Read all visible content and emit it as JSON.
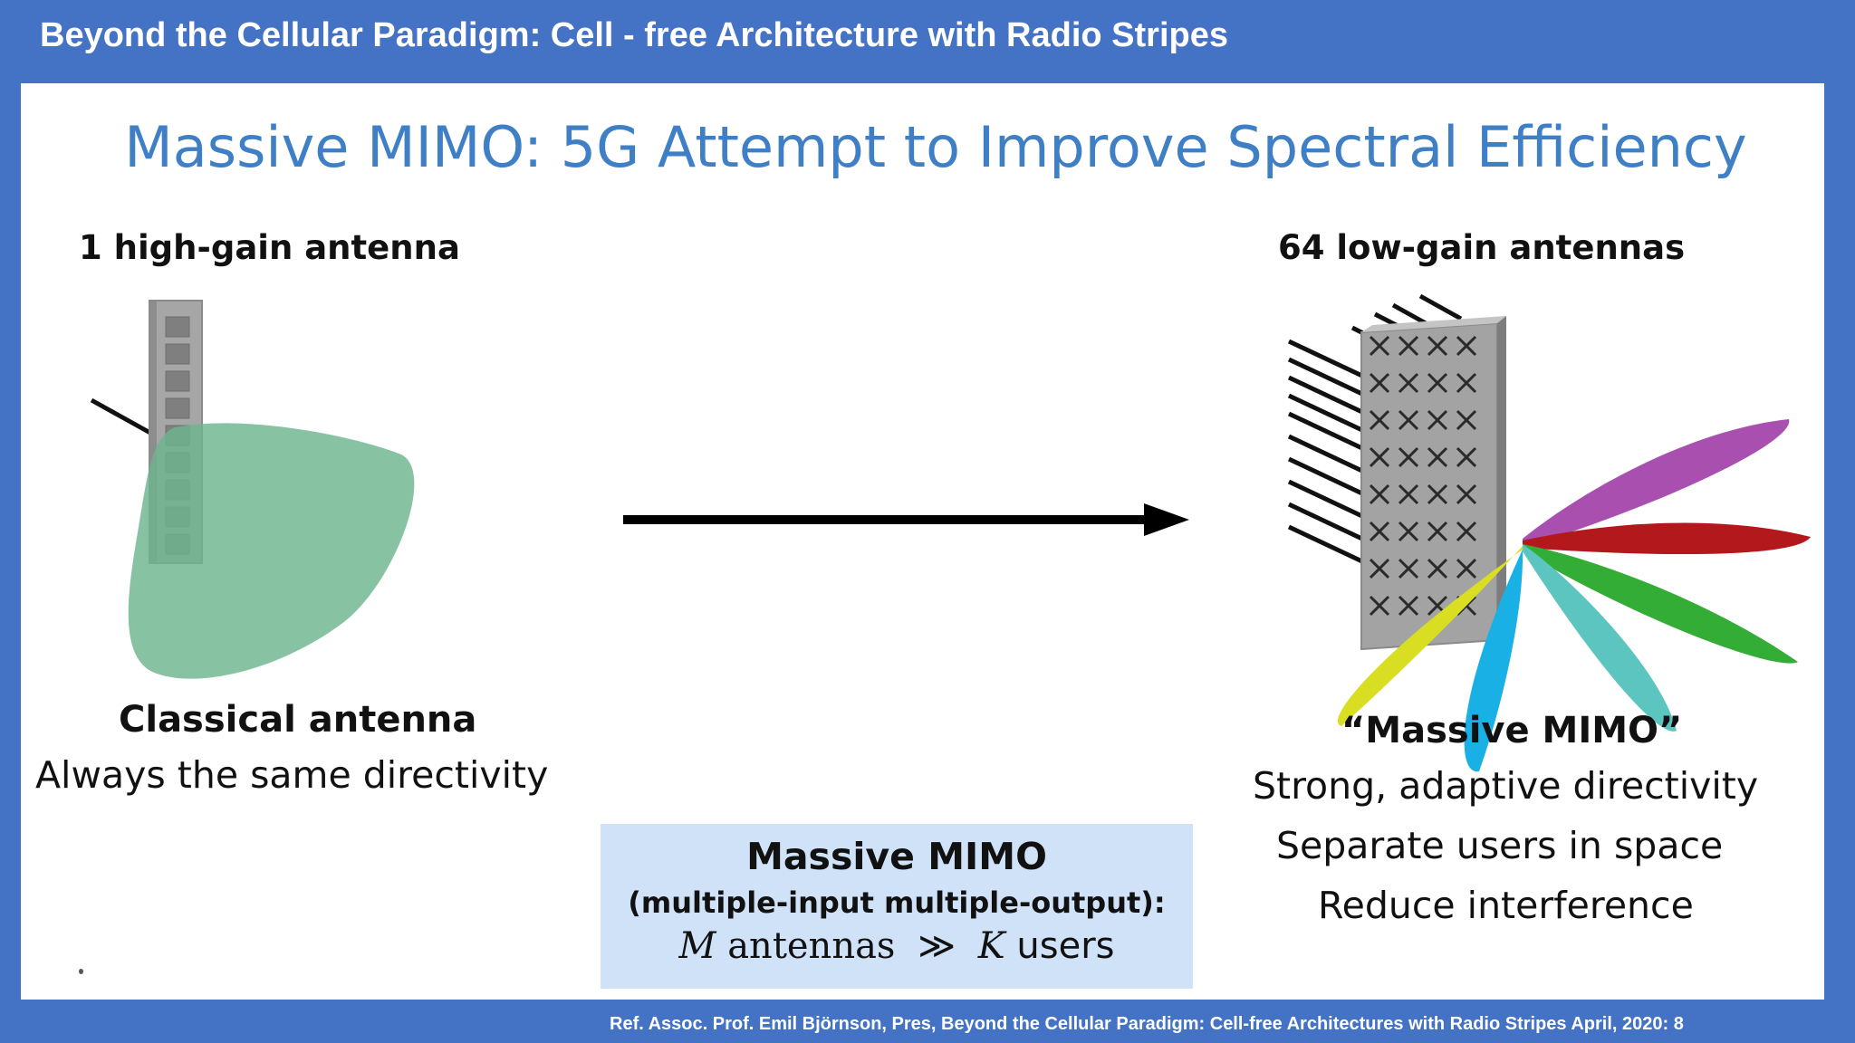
{
  "header": {
    "title": "Beyond the Cellular Paradigm: Cell - free Architecture with Radio Stripes"
  },
  "slide": {
    "title": "Massive MIMO: 5G Attempt to Improve Spectral Efficiency",
    "left": {
      "top_label": "1 high-gain antenna",
      "caption_title": "Classical antenna",
      "caption_text": "Always the same directivity"
    },
    "right": {
      "top_label": "64 low-gain antennas",
      "caption_title": "“Massive MIMO”",
      "bullets": [
        "Strong, adaptive directivity",
        "Separate users in space",
        "Reduce interference"
      ]
    },
    "definition_box": {
      "title": "Massive MIMO",
      "subtitle": "(multiple-input multiple-output):",
      "formula_m": "M",
      "formula_antennas": "antennas",
      "formula_op": "≫",
      "formula_k": "K",
      "formula_users": "users"
    }
  },
  "footer": {
    "reference": "Ref. Assoc. Prof. Emil Björnson, Pres, Beyond the Cellular Paradigm: Cell-free Architectures with Radio Stripes April, 2020: 8"
  },
  "colors": {
    "frame_blue": "#4472c4",
    "title_blue": "#3f7fc6",
    "box_fill": "#cfe2f7",
    "coverage_green": "#6db48e",
    "beam_colors": [
      "#a94fb0",
      "#b3191c",
      "#34ad36",
      "#5cc5bf",
      "#19b0e6",
      "#d9de23"
    ]
  }
}
